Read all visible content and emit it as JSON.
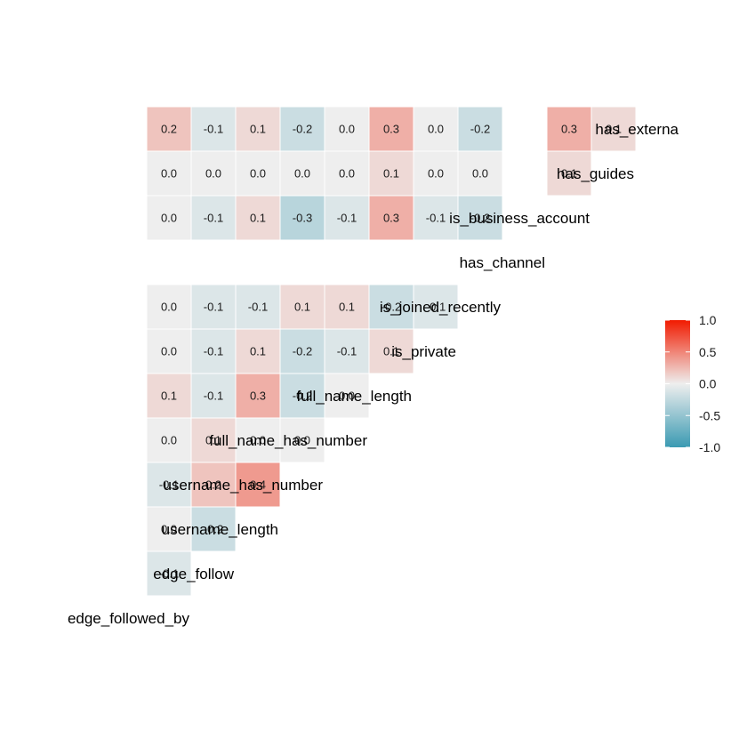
{
  "chart_data": {
    "type": "heatmap",
    "variables": [
      "edge_followed_by",
      "edge_follow",
      "username_length",
      "username_has_number",
      "full_name_has_number",
      "full_name_length",
      "is_private",
      "is_joined_recently",
      "has_channel",
      "is_business_account",
      "has_guides",
      "has_external_url"
    ],
    "variable_labels": [
      "edge_followed_by",
      "edge_follow",
      "username_length",
      "username_has_number",
      "full_name_has_number",
      "full_name_length",
      "is_private",
      "is_joined_recently",
      "has_channel",
      "is_business_account",
      "has_guides",
      "has_externa"
    ],
    "cells": [
      {
        "row": "edge_follow",
        "col": "edge_followed_by",
        "value": -0.1
      },
      {
        "row": "username_length",
        "col": "edge_followed_by",
        "value": 0.0
      },
      {
        "row": "username_length",
        "col": "edge_follow",
        "value": -0.2
      },
      {
        "row": "username_has_number",
        "col": "edge_followed_by",
        "value": -0.1
      },
      {
        "row": "username_has_number",
        "col": "edge_follow",
        "value": 0.2
      },
      {
        "row": "username_has_number",
        "col": "username_length",
        "value": 0.4
      },
      {
        "row": "full_name_has_number",
        "col": "edge_followed_by",
        "value": 0.0
      },
      {
        "row": "full_name_has_number",
        "col": "edge_follow",
        "value": 0.1
      },
      {
        "row": "full_name_has_number",
        "col": "username_length",
        "value": 0.0
      },
      {
        "row": "full_name_has_number",
        "col": "username_has_number",
        "value": 0.0
      },
      {
        "row": "full_name_length",
        "col": "edge_followed_by",
        "value": 0.1
      },
      {
        "row": "full_name_length",
        "col": "edge_follow",
        "value": -0.1
      },
      {
        "row": "full_name_length",
        "col": "username_length",
        "value": 0.3
      },
      {
        "row": "full_name_length",
        "col": "username_has_number",
        "value": -0.2
      },
      {
        "row": "full_name_length",
        "col": "full_name_has_number",
        "value": 0.0
      },
      {
        "row": "is_private",
        "col": "edge_followed_by",
        "value": 0.0
      },
      {
        "row": "is_private",
        "col": "edge_follow",
        "value": -0.1
      },
      {
        "row": "is_private",
        "col": "username_length",
        "value": 0.1
      },
      {
        "row": "is_private",
        "col": "username_has_number",
        "value": -0.2
      },
      {
        "row": "is_private",
        "col": "full_name_has_number",
        "value": -0.1
      },
      {
        "row": "is_private",
        "col": "full_name_length",
        "value": 0.1
      },
      {
        "row": "is_joined_recently",
        "col": "edge_followed_by",
        "value": 0.0
      },
      {
        "row": "is_joined_recently",
        "col": "edge_follow",
        "value": -0.1
      },
      {
        "row": "is_joined_recently",
        "col": "username_length",
        "value": -0.1
      },
      {
        "row": "is_joined_recently",
        "col": "username_has_number",
        "value": 0.1
      },
      {
        "row": "is_joined_recently",
        "col": "full_name_has_number",
        "value": 0.1
      },
      {
        "row": "is_joined_recently",
        "col": "full_name_length",
        "value": -0.2
      },
      {
        "row": "is_joined_recently",
        "col": "is_private",
        "value": -0.1
      },
      {
        "row": "is_business_account",
        "col": "edge_followed_by",
        "value": 0.0
      },
      {
        "row": "is_business_account",
        "col": "edge_follow",
        "value": -0.1
      },
      {
        "row": "is_business_account",
        "col": "username_length",
        "value": 0.1
      },
      {
        "row": "is_business_account",
        "col": "username_has_number",
        "value": -0.3
      },
      {
        "row": "is_business_account",
        "col": "full_name_has_number",
        "value": -0.1
      },
      {
        "row": "is_business_account",
        "col": "full_name_length",
        "value": 0.3
      },
      {
        "row": "is_business_account",
        "col": "is_private",
        "value": -0.1
      },
      {
        "row": "is_business_account",
        "col": "is_joined_recently",
        "value": -0.2
      },
      {
        "row": "has_guides",
        "col": "edge_followed_by",
        "value": 0.0
      },
      {
        "row": "has_guides",
        "col": "edge_follow",
        "value": 0.0
      },
      {
        "row": "has_guides",
        "col": "username_length",
        "value": 0.0
      },
      {
        "row": "has_guides",
        "col": "username_has_number",
        "value": 0.0
      },
      {
        "row": "has_guides",
        "col": "full_name_has_number",
        "value": 0.0
      },
      {
        "row": "has_guides",
        "col": "full_name_length",
        "value": 0.1
      },
      {
        "row": "has_guides",
        "col": "is_private",
        "value": 0.0
      },
      {
        "row": "has_guides",
        "col": "is_joined_recently",
        "value": 0.0
      },
      {
        "row": "has_guides",
        "col": "is_business_account",
        "value": 0.1
      },
      {
        "row": "has_external_url",
        "col": "edge_followed_by",
        "value": 0.2
      },
      {
        "row": "has_external_url",
        "col": "edge_follow",
        "value": -0.1
      },
      {
        "row": "has_external_url",
        "col": "username_length",
        "value": 0.1
      },
      {
        "row": "has_external_url",
        "col": "username_has_number",
        "value": -0.2
      },
      {
        "row": "has_external_url",
        "col": "full_name_has_number",
        "value": 0.0
      },
      {
        "row": "has_external_url",
        "col": "full_name_length",
        "value": 0.3
      },
      {
        "row": "has_external_url",
        "col": "is_private",
        "value": 0.0
      },
      {
        "row": "has_external_url",
        "col": "is_joined_recently",
        "value": -0.2
      },
      {
        "row": "has_external_url",
        "col": "is_business_account",
        "value": 0.3
      },
      {
        "row": "has_external_url",
        "col": "has_guides",
        "value": 0.1
      }
    ],
    "color_scale": {
      "low": -1.0,
      "mid": 0.0,
      "high": 1.0,
      "low_color": "#3A9AB2",
      "mid_color": "#EEEEEE",
      "high_color": "#F11B00"
    },
    "legend": {
      "position": "right",
      "ticks": [
        1.0,
        0.5,
        0.0,
        -0.5,
        -1.0
      ],
      "tick_labels": [
        "1.0",
        "0.5",
        "0.0",
        "-0.5",
        "-1.0"
      ]
    },
    "label_format": "one_decimal"
  }
}
